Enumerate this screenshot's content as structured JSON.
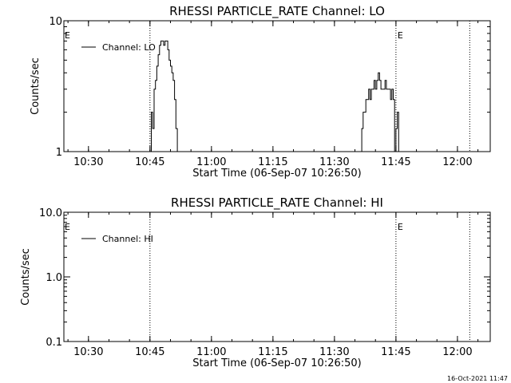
{
  "footer": {
    "timestamp": "16-Oct-2021 11:47"
  },
  "chart_data": [
    {
      "type": "line",
      "title": "RHESSI PARTICLE_RATE Channel: LO",
      "xlabel": "Start Time (06-Sep-07 10:26:50)",
      "ylabel": "Counts/sec",
      "yscale": "log",
      "ylim": [
        1,
        10
      ],
      "ytick_values": [
        1,
        10
      ],
      "ytick_labels": [
        "1",
        "10"
      ],
      "xlim": [
        "10:24",
        "12:08"
      ],
      "xtick_values": [
        "10:30",
        "10:45",
        "11:00",
        "11:15",
        "11:30",
        "11:45",
        "12:00"
      ],
      "xtick_labels": [
        "10:30",
        "10:45",
        "11:00",
        "11:15",
        "11:30",
        "11:45",
        "12:00"
      ],
      "vlines": [
        {
          "x": "10:45",
          "label": ""
        },
        {
          "x": "11:45",
          "label": "E"
        },
        {
          "x": "12:03",
          "label": ""
        }
      ],
      "edge_label": "E",
      "legend": {
        "position": "top-left",
        "entries": [
          "Channel: LO"
        ]
      },
      "series": [
        {
          "name": "Channel: LO",
          "x": [
            "10:45:00",
            "10:45:20",
            "10:45:40",
            "10:46:00",
            "10:46:20",
            "10:46:40",
            "10:47:00",
            "10:47:20",
            "10:47:40",
            "10:48:00",
            "10:48:20",
            "10:48:40",
            "10:49:00",
            "10:49:20",
            "10:49:40",
            "10:50:00",
            "10:50:20",
            "10:50:40",
            "10:51:00",
            "10:51:20",
            "10:51:40",
            "11:36:20",
            "11:36:40",
            "11:37:00",
            "11:37:20",
            "11:37:40",
            "11:38:00",
            "11:38:20",
            "11:38:40",
            "11:39:00",
            "11:39:20",
            "11:39:40",
            "11:40:00",
            "11:40:20",
            "11:40:40",
            "11:41:00",
            "11:41:20",
            "11:41:40",
            "11:42:00",
            "11:42:20",
            "11:42:40",
            "11:43:00",
            "11:43:20",
            "11:43:40",
            "11:44:00",
            "11:44:20",
            "11:44:40",
            "11:45:00",
            "11:45:20",
            "11:45:40"
          ],
          "values": [
            1,
            2,
            1.5,
            3,
            3.5,
            4.5,
            5.5,
            6.5,
            7,
            7,
            6.5,
            7,
            7,
            6,
            5,
            4.5,
            4,
            3.5,
            2.5,
            1.5,
            1,
            1,
            1.5,
            2,
            2,
            2.5,
            2.5,
            3,
            2.5,
            3,
            3,
            3.5,
            3,
            3.5,
            4,
            3.5,
            3,
            3,
            3,
            3.5,
            3,
            3,
            3,
            2.5,
            3,
            2.5,
            1,
            1.5,
            2,
            1
          ]
        }
      ]
    },
    {
      "type": "line",
      "title": "RHESSI PARTICLE_RATE Channel: HI",
      "xlabel": "Start Time (06-Sep-07 10:26:50)",
      "ylabel": "Counts/sec",
      "yscale": "log",
      "ylim": [
        0.1,
        10
      ],
      "ytick_values": [
        0.1,
        1,
        10
      ],
      "ytick_labels": [
        "0.1",
        "1.0",
        "10.0"
      ],
      "xlim": [
        "10:24",
        "12:08"
      ],
      "xtick_values": [
        "10:30",
        "10:45",
        "11:00",
        "11:15",
        "11:30",
        "11:45",
        "12:00"
      ],
      "xtick_labels": [
        "10:30",
        "10:45",
        "11:00",
        "11:15",
        "11:30",
        "11:45",
        "12:00"
      ],
      "vlines": [
        {
          "x": "10:45",
          "label": ""
        },
        {
          "x": "11:45",
          "label": "E"
        },
        {
          "x": "12:03",
          "label": ""
        }
      ],
      "edge_label": "E",
      "legend": {
        "position": "top-left",
        "entries": [
          "Channel: HI"
        ]
      },
      "series": [
        {
          "name": "Channel: HI",
          "x": [],
          "values": []
        }
      ]
    }
  ]
}
